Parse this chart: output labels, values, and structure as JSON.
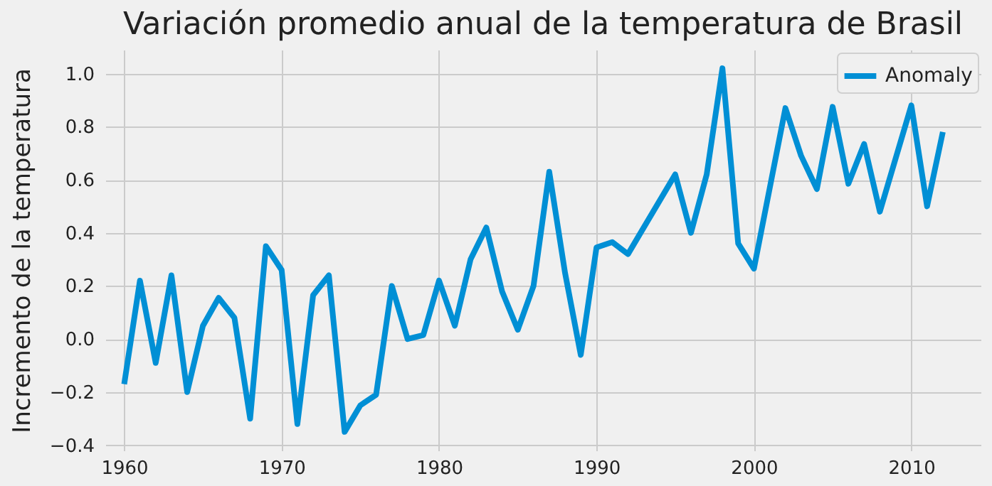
{
  "chart_data": {
    "type": "line",
    "title": "Variación promedio anual de la temperatura de Brasil",
    "ylabel": "Incremento de la temperatura",
    "x": [
      1960,
      1961,
      1962,
      1963,
      1964,
      1965,
      1966,
      1967,
      1968,
      1969,
      1970,
      1971,
      1972,
      1973,
      1974,
      1975,
      1976,
      1977,
      1978,
      1979,
      1980,
      1981,
      1982,
      1983,
      1984,
      1985,
      1986,
      1987,
      1988,
      1989,
      1990,
      1991,
      1992,
      1995,
      1996,
      1997,
      1998,
      1999,
      2000,
      2002,
      2003,
      2004,
      2005,
      2006,
      2007,
      2008,
      2010,
      2011,
      2012
    ],
    "series": [
      {
        "name": "Anomaly",
        "color": "#008fd5",
        "values": [
          -0.17,
          0.22,
          -0.09,
          0.24,
          -0.2,
          0.05,
          0.155,
          0.08,
          -0.3,
          0.35,
          0.26,
          -0.32,
          0.165,
          0.24,
          -0.35,
          -0.25,
          -0.21,
          0.2,
          0.0,
          0.015,
          0.22,
          0.05,
          0.3,
          0.42,
          0.18,
          0.035,
          0.2,
          0.63,
          0.25,
          -0.06,
          0.345,
          0.365,
          0.32,
          0.62,
          0.4,
          0.62,
          1.02,
          0.36,
          0.265,
          0.87,
          0.69,
          0.565,
          0.875,
          0.585,
          0.735,
          0.48,
          0.88,
          0.5,
          0.78
        ]
      }
    ],
    "xlim": [
      1958.8,
      2014.4
    ],
    "xticks": [
      1960,
      1970,
      1980,
      1990,
      2000,
      2010
    ],
    "ylim": [
      -0.42,
      1.09
    ],
    "yticks": [
      {
        "value": -0.4,
        "label": "−0.4"
      },
      {
        "value": -0.2,
        "label": "−0.2"
      },
      {
        "value": 0,
        "label": "0.0"
      },
      {
        "value": 0.2,
        "label": "0.2"
      },
      {
        "value": 0.4,
        "label": "0.4"
      },
      {
        "value": 0.6,
        "label": "0.6"
      },
      {
        "value": 0.8,
        "label": "0.8"
      },
      {
        "value": 1.0,
        "label": "1.0"
      }
    ],
    "grid": true,
    "legend": "top right",
    "line_style": "solid",
    "marker": "none"
  }
}
